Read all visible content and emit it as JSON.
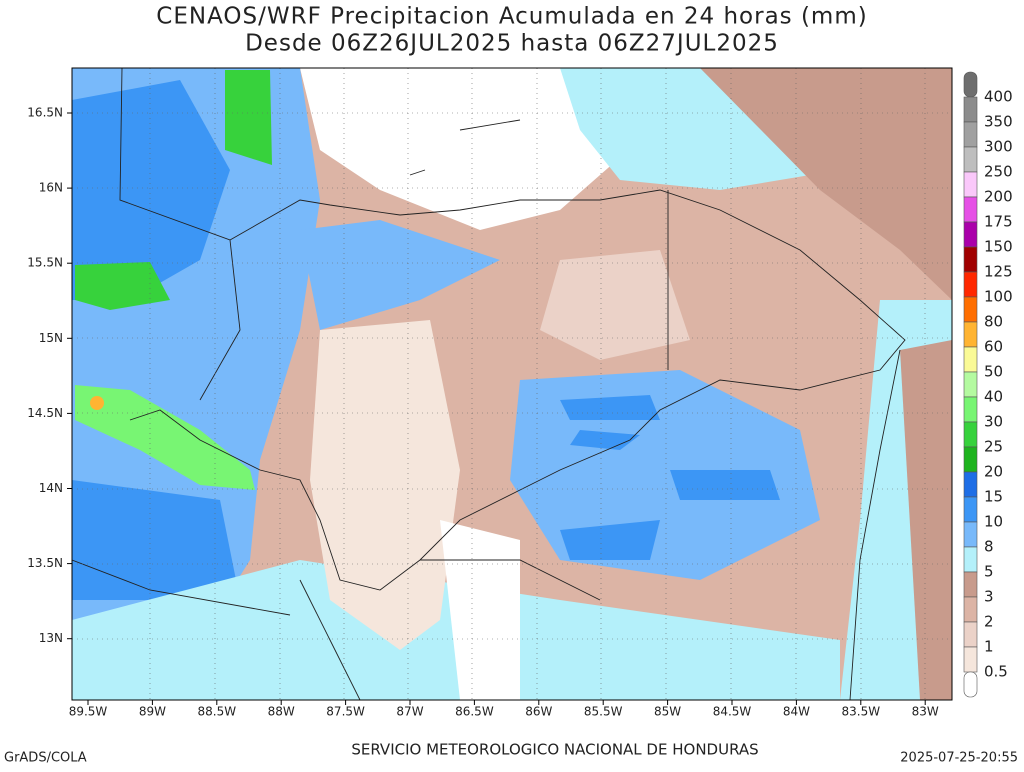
{
  "header": {
    "title": "CENAOS/WRF Precipitacion Acumulada en 24 horas (mm)",
    "subtitle": "Desde 06Z26JUL2025 hasta 06Z27JUL2025"
  },
  "map": {
    "lon_labels": [
      "89.5W",
      "89W",
      "88.5W",
      "88W",
      "87.5W",
      "87W",
      "86.5W",
      "86W",
      "85.5W",
      "85W",
      "84.5W",
      "84W",
      "83.5W",
      "83W"
    ],
    "lat_labels": [
      "16.5N",
      "16N",
      "15.5N",
      "15N",
      "14.5N",
      "14N",
      "13.5N",
      "13N"
    ]
  },
  "colorbar": {
    "levels": [
      400,
      350,
      300,
      250,
      200,
      175,
      150,
      125,
      100,
      80,
      60,
      50,
      40,
      30,
      25,
      20,
      15,
      10,
      8,
      5,
      3,
      2,
      1,
      0.5
    ],
    "colors": [
      "#6e6e6e",
      "#8c8c8c",
      "#a0a0a0",
      "#bebebe",
      "#fac8fa",
      "#e650e6",
      "#aa00aa",
      "#a00000",
      "#ff2800",
      "#ff6e00",
      "#ffb432",
      "#fafa96",
      "#b4faa0",
      "#78f573",
      "#37d23c",
      "#1eb41e",
      "#1e6ee6",
      "#3c96f5",
      "#78b9fa",
      "#b4f0fa",
      "#c89b8c",
      "#dcb4a5",
      "#ebd2c8",
      "#f5e6dc",
      "#ffffff"
    ]
  },
  "footer": {
    "left": "GrADS/COLA",
    "center": "SERVICIO METEOROLOGICO NACIONAL DE HONDURAS",
    "right": "2025-07-25-20:55"
  }
}
